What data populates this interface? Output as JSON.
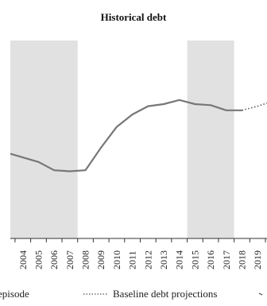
{
  "chart_data": {
    "type": "line",
    "title": "Historical debt",
    "xlabel": "",
    "ylabel": "",
    "categories": [
      "2004",
      "2005",
      "2006",
      "2007",
      "2008",
      "2009",
      "2010",
      "2011",
      "2012",
      "2013",
      "2014",
      "2015",
      "2016",
      "2017",
      "2018",
      "2019"
    ],
    "series": [
      {
        "name": "Historical debt",
        "style": "solid",
        "color": "#777777",
        "points": [
          {
            "x": 2003.2,
            "y": 41
          },
          {
            "x": 2005,
            "y": 37
          },
          {
            "x": 2006,
            "y": 33
          },
          {
            "x": 2007,
            "y": 32.5
          },
          {
            "x": 2008,
            "y": 33
          },
          {
            "x": 2009,
            "y": 44
          },
          {
            "x": 2010,
            "y": 54
          },
          {
            "x": 2011,
            "y": 60
          },
          {
            "x": 2012,
            "y": 64
          },
          {
            "x": 2013,
            "y": 65
          },
          {
            "x": 2014,
            "y": 67
          },
          {
            "x": 2015,
            "y": 65
          },
          {
            "x": 2016,
            "y": 64.5
          },
          {
            "x": 2017,
            "y": 62
          },
          {
            "x": 2018,
            "y": 62
          }
        ]
      },
      {
        "name": "Baseline debt projections",
        "style": "dotted",
        "color": "#555555",
        "points": [
          {
            "x": 2018,
            "y": 62
          },
          {
            "x": 2019,
            "y": 64
          },
          {
            "x": 2019.6,
            "y": 65.5
          }
        ]
      }
    ],
    "shaded_regions": [
      {
        "from": 2003.2,
        "to": 2007.5
      },
      {
        "from": 2014.5,
        "to": 2017.5
      }
    ],
    "xlim": [
      2003.2,
      2019.6
    ],
    "ylim": [
      0,
      100
    ],
    "grid": false,
    "legend": {
      "placement": "bottom",
      "entries": [
        {
          "label": "episode",
          "style": "shaded"
        },
        {
          "label": "Baseline debt projections",
          "style": "dotted"
        },
        {
          "label": "",
          "style": "other"
        }
      ]
    }
  }
}
